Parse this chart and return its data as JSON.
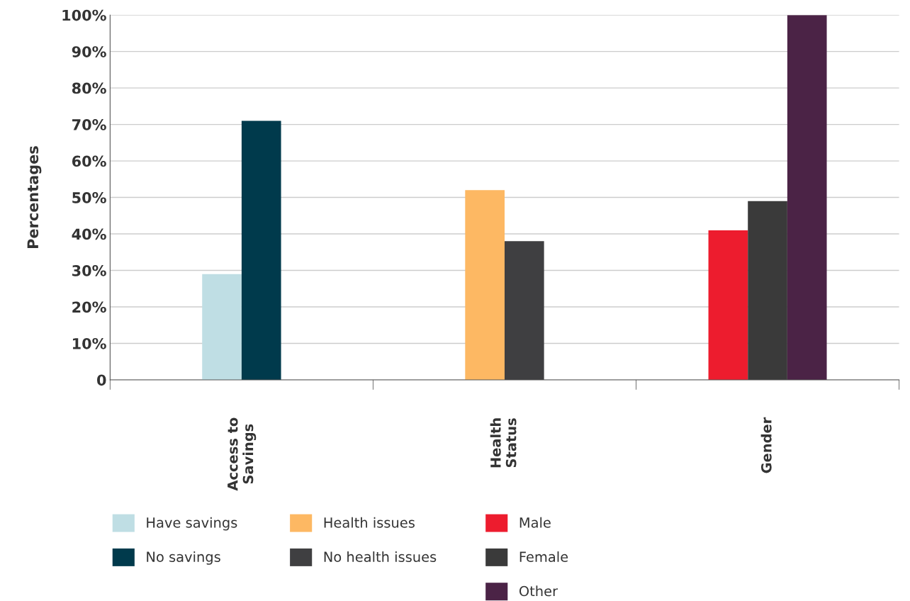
{
  "chart_data": {
    "type": "bar",
    "ylabel": "Percentages",
    "categories": [
      "Access to\nSavings",
      "Health\nStatus",
      "Gender"
    ],
    "series": [
      {
        "name": "Have savings",
        "color": "#bfdee4",
        "values": [
          29,
          null,
          null
        ]
      },
      {
        "name": "No savings",
        "color": "#003a4c",
        "values": [
          71,
          null,
          null
        ]
      },
      {
        "name": "Health issues",
        "color": "#fdb863",
        "values": [
          null,
          52,
          null
        ]
      },
      {
        "name": "No health issues",
        "color": "#3f3f41",
        "values": [
          null,
          38,
          null
        ]
      },
      {
        "name": "Male",
        "color": "#ed1c2e",
        "values": [
          null,
          null,
          41
        ]
      },
      {
        "name": "Female",
        "color": "#3a3a3a",
        "values": [
          null,
          null,
          49
        ]
      },
      {
        "name": "Other",
        "color": "#4b2346",
        "values": [
          null,
          null,
          100
        ]
      }
    ],
    "ylim": [
      0,
      100
    ],
    "yticks": [
      {
        "value": 0,
        "label": "0"
      },
      {
        "value": 10,
        "label": "10%"
      },
      {
        "value": 20,
        "label": "20%"
      },
      {
        "value": 30,
        "label": "30%"
      },
      {
        "value": 40,
        "label": "40%"
      },
      {
        "value": 50,
        "label": "50%"
      },
      {
        "value": 60,
        "label": "60%"
      },
      {
        "value": 70,
        "label": "70%"
      },
      {
        "value": 80,
        "label": "80%"
      },
      {
        "value": 90,
        "label": "90%"
      },
      {
        "value": 100,
        "label": "100%"
      }
    ],
    "grid": "y",
    "legend": "bottom"
  }
}
